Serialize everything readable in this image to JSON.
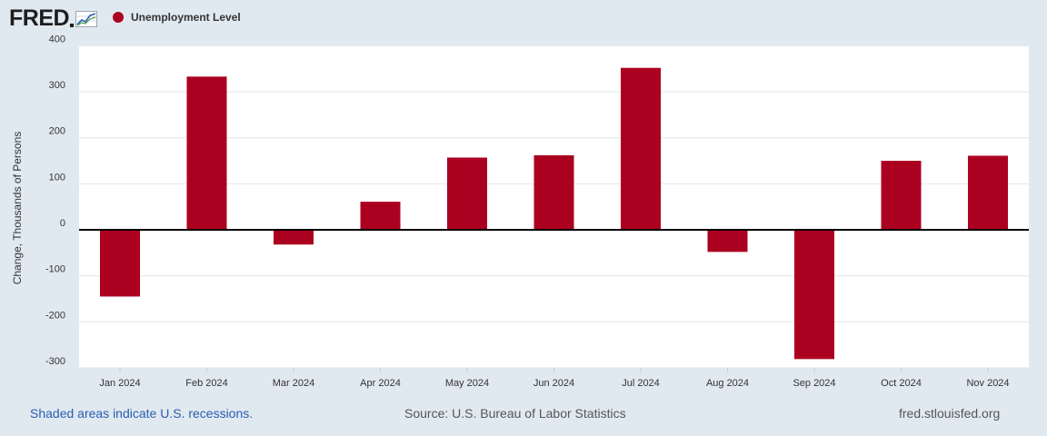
{
  "header": {
    "logo_text": "FRED",
    "series_name": "Unemployment Level",
    "series_color": "#ac0021"
  },
  "chart_data": {
    "type": "bar",
    "title": "Unemployment Level",
    "xlabel": "",
    "ylabel": "Change, Thousands of Persons",
    "categories": [
      "Jan 2024",
      "Feb 2024",
      "Mar 2024",
      "Apr 2024",
      "May 2024",
      "Jun 2024",
      "Jul 2024",
      "Aug 2024",
      "Sep 2024",
      "Oct 2024",
      "Nov 2024"
    ],
    "values": [
      -145,
      333,
      -32,
      61,
      157,
      162,
      352,
      -48,
      -281,
      150,
      161
    ],
    "ylim": [
      -300,
      400
    ],
    "yticks": [
      -300,
      -200,
      -100,
      0,
      100,
      200,
      300,
      400
    ],
    "ytick_labels": [
      "-300",
      "-200",
      "-100",
      "0",
      "100",
      "200",
      "300",
      "400"
    ],
    "grid": true,
    "bar_color": "#ac0021"
  },
  "footer": {
    "recession_note": "Shaded areas indicate U.S. recessions.",
    "source": "Source: U.S. Bureau of Labor Statistics",
    "site": "fred.stlouisfed.org"
  }
}
